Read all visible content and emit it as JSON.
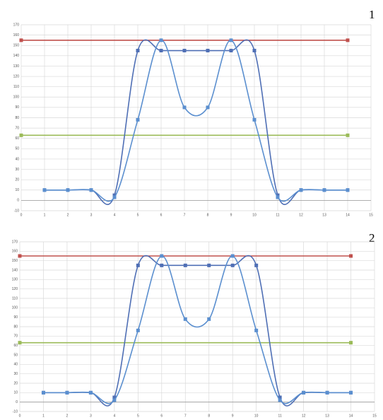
{
  "chart_data": [
    {
      "type": "line",
      "label": "1",
      "xlim": [
        0,
        15
      ],
      "xticks": [
        0,
        1,
        2,
        3,
        4,
        5,
        6,
        7,
        8,
        9,
        10,
        11,
        12,
        13,
        14,
        15
      ],
      "ylim": [
        -10,
        170
      ],
      "yticks": [
        -10,
        0,
        10,
        20,
        30,
        40,
        50,
        60,
        70,
        80,
        90,
        100,
        110,
        120,
        130,
        140,
        150,
        160,
        170
      ],
      "grid": true,
      "series": [
        {
          "color": "#c0504d",
          "x": [
            0,
            14
          ],
          "values": [
            155,
            155
          ]
        },
        {
          "color": "#9bbb59",
          "x": [
            0,
            14
          ],
          "values": [
            63,
            63
          ]
        },
        {
          "color": "#4f6fb5",
          "x": [
            1,
            2,
            3,
            4,
            5,
            6,
            7,
            8,
            9,
            10,
            11,
            12,
            13,
            14
          ],
          "values": [
            10,
            10,
            10,
            5,
            145,
            145,
            145,
            145,
            145,
            145,
            5,
            10,
            10,
            10
          ]
        },
        {
          "color": "#5b8fcf",
          "x": [
            1,
            2,
            3,
            4,
            5,
            6,
            7,
            8,
            9,
            10,
            11,
            12,
            13,
            14
          ],
          "values": [
            10,
            10,
            10,
            3,
            78,
            155,
            90,
            90,
            155,
            78,
            3,
            10,
            10,
            10
          ]
        }
      ]
    },
    {
      "type": "line",
      "label": "2",
      "xlim": [
        0,
        15
      ],
      "xticks": [
        0,
        1,
        2,
        3,
        4,
        5,
        6,
        7,
        8,
        9,
        10,
        11,
        12,
        13,
        14,
        15
      ],
      "ylim": [
        -10,
        170
      ],
      "yticks": [
        -10,
        0,
        10,
        20,
        30,
        40,
        50,
        60,
        70,
        80,
        90,
        100,
        110,
        120,
        130,
        140,
        150,
        160,
        170
      ],
      "grid": true,
      "series": [
        {
          "color": "#c0504d",
          "x": [
            0,
            14
          ],
          "values": [
            155,
            155
          ]
        },
        {
          "color": "#9bbb59",
          "x": [
            0,
            14
          ],
          "values": [
            63,
            63
          ]
        },
        {
          "color": "#4f6fb5",
          "x": [
            1,
            2,
            3,
            4,
            5,
            6,
            7,
            8,
            9,
            10,
            11,
            12,
            13,
            14
          ],
          "values": [
            10,
            10,
            10,
            5,
            145,
            145,
            145,
            145,
            145,
            145,
            5,
            10,
            10,
            10
          ]
        },
        {
          "color": "#5b8fcf",
          "x": [
            1,
            2,
            3,
            4,
            5,
            6,
            7,
            8,
            9,
            10,
            11,
            12,
            13,
            14
          ],
          "values": [
            10,
            10,
            10,
            2,
            76,
            155,
            88,
            88,
            155,
            76,
            2,
            10,
            10,
            10
          ]
        }
      ]
    }
  ]
}
